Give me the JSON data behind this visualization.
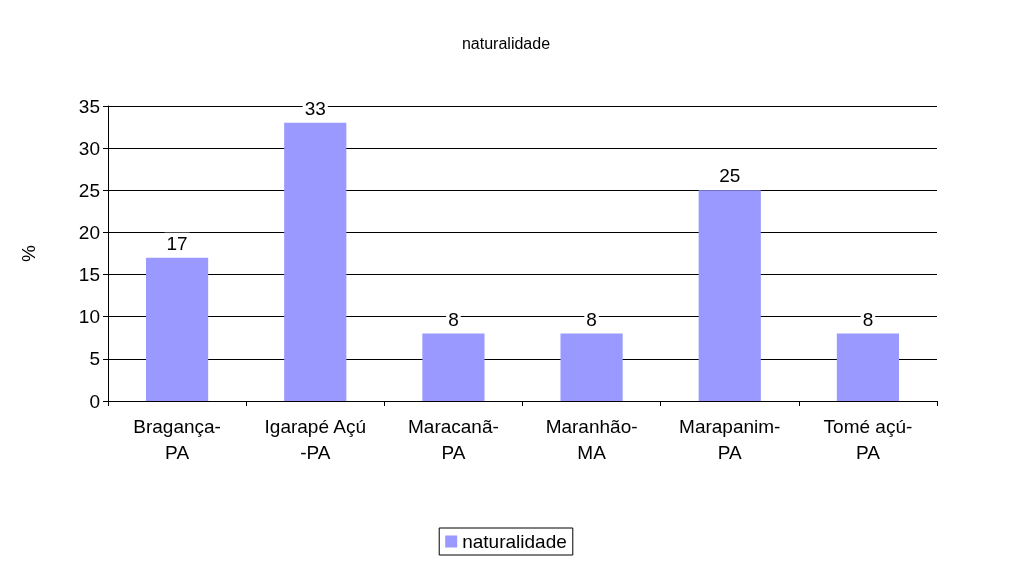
{
  "chart_data": {
    "type": "bar",
    "title": "naturalidade",
    "ylabel": "%",
    "categories": [
      "Bragança-\nPA",
      "Igarapé Açú\n-PA",
      "Maracanã-\nPA",
      "Maranhão-\nMA",
      "Marapanim-\nPA",
      "Tomé açú-\nPA"
    ],
    "series": [
      {
        "name": "naturalidade",
        "color": "#9999ff",
        "values": [
          17,
          33,
          8,
          8,
          25,
          8
        ]
      }
    ],
    "ylim": [
      0,
      35
    ],
    "yticks": [
      0,
      5,
      10,
      15,
      20,
      25,
      30,
      35
    ],
    "grid": "y",
    "legend": "bottom",
    "data_labels": true
  }
}
